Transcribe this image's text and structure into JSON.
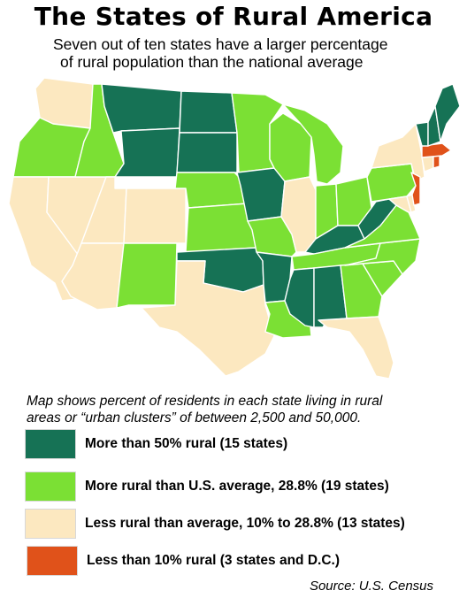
{
  "title": "The States of Rural America",
  "subtitle": [
    "Seven out of ten states have a larger percentage",
    "of rural population than the national average"
  ],
  "caption": [
    "Map shows percent of residents in each state living in rural",
    "areas or “urban clusters” of between 2,500 and 50,000."
  ],
  "colors": {
    "more_than_50": "#167255",
    "above_average": "#7be034",
    "below_average": "#fce8c0",
    "less_than_10": "#e0521a"
  },
  "legend": [
    {
      "category": "more_than_50",
      "label": "More than 50% rural (15 states)"
    },
    {
      "category": "above_average",
      "label": "More rural than U.S. average, 28.8% (19 states)"
    },
    {
      "category": "below_average",
      "label": "Less rural than average, 10% to 28.8% (13 states)"
    },
    {
      "category": "less_than_10",
      "label": "Less than 10% rural (3 states and D.C.)"
    }
  ],
  "source": "Source: U.S. Census",
  "states": [
    {
      "code": "WA",
      "category": "below_average"
    },
    {
      "code": "OR",
      "category": "above_average"
    },
    {
      "code": "CA",
      "category": "below_average"
    },
    {
      "code": "NV",
      "category": "below_average"
    },
    {
      "code": "ID",
      "category": "above_average"
    },
    {
      "code": "MT",
      "category": "more_than_50"
    },
    {
      "code": "WY",
      "category": "more_than_50"
    },
    {
      "code": "UT",
      "category": "below_average"
    },
    {
      "code": "AZ",
      "category": "below_average"
    },
    {
      "code": "CO",
      "category": "below_average"
    },
    {
      "code": "NM",
      "category": "above_average"
    },
    {
      "code": "ND",
      "category": "more_than_50"
    },
    {
      "code": "SD",
      "category": "more_than_50"
    },
    {
      "code": "NE",
      "category": "above_average"
    },
    {
      "code": "KS",
      "category": "above_average"
    },
    {
      "code": "OK",
      "category": "more_than_50"
    },
    {
      "code": "TX",
      "category": "below_average"
    },
    {
      "code": "MN",
      "category": "above_average"
    },
    {
      "code": "IA",
      "category": "more_than_50"
    },
    {
      "code": "MO",
      "category": "above_average"
    },
    {
      "code": "AR",
      "category": "more_than_50"
    },
    {
      "code": "LA",
      "category": "above_average"
    },
    {
      "code": "WI",
      "category": "above_average"
    },
    {
      "code": "IL",
      "category": "below_average"
    },
    {
      "code": "MI",
      "category": "above_average"
    },
    {
      "code": "IN",
      "category": "above_average"
    },
    {
      "code": "OH",
      "category": "above_average"
    },
    {
      "code": "KY",
      "category": "more_than_50"
    },
    {
      "code": "TN",
      "category": "above_average"
    },
    {
      "code": "MS",
      "category": "more_than_50"
    },
    {
      "code": "AL",
      "category": "more_than_50"
    },
    {
      "code": "GA",
      "category": "above_average"
    },
    {
      "code": "FL",
      "category": "below_average"
    },
    {
      "code": "SC",
      "category": "above_average"
    },
    {
      "code": "NC",
      "category": "above_average"
    },
    {
      "code": "VA",
      "category": "above_average"
    },
    {
      "code": "WV",
      "category": "more_than_50"
    },
    {
      "code": "PA",
      "category": "above_average"
    },
    {
      "code": "NY",
      "category": "below_average"
    },
    {
      "code": "MD",
      "category": "below_average"
    },
    {
      "code": "DE",
      "category": "below_average"
    },
    {
      "code": "NJ",
      "category": "less_than_10"
    },
    {
      "code": "CT",
      "category": "below_average"
    },
    {
      "code": "RI",
      "category": "less_than_10"
    },
    {
      "code": "MA",
      "category": "less_than_10"
    },
    {
      "code": "VT",
      "category": "more_than_50"
    },
    {
      "code": "NH",
      "category": "more_than_50"
    },
    {
      "code": "ME",
      "category": "more_than_50"
    }
  ]
}
